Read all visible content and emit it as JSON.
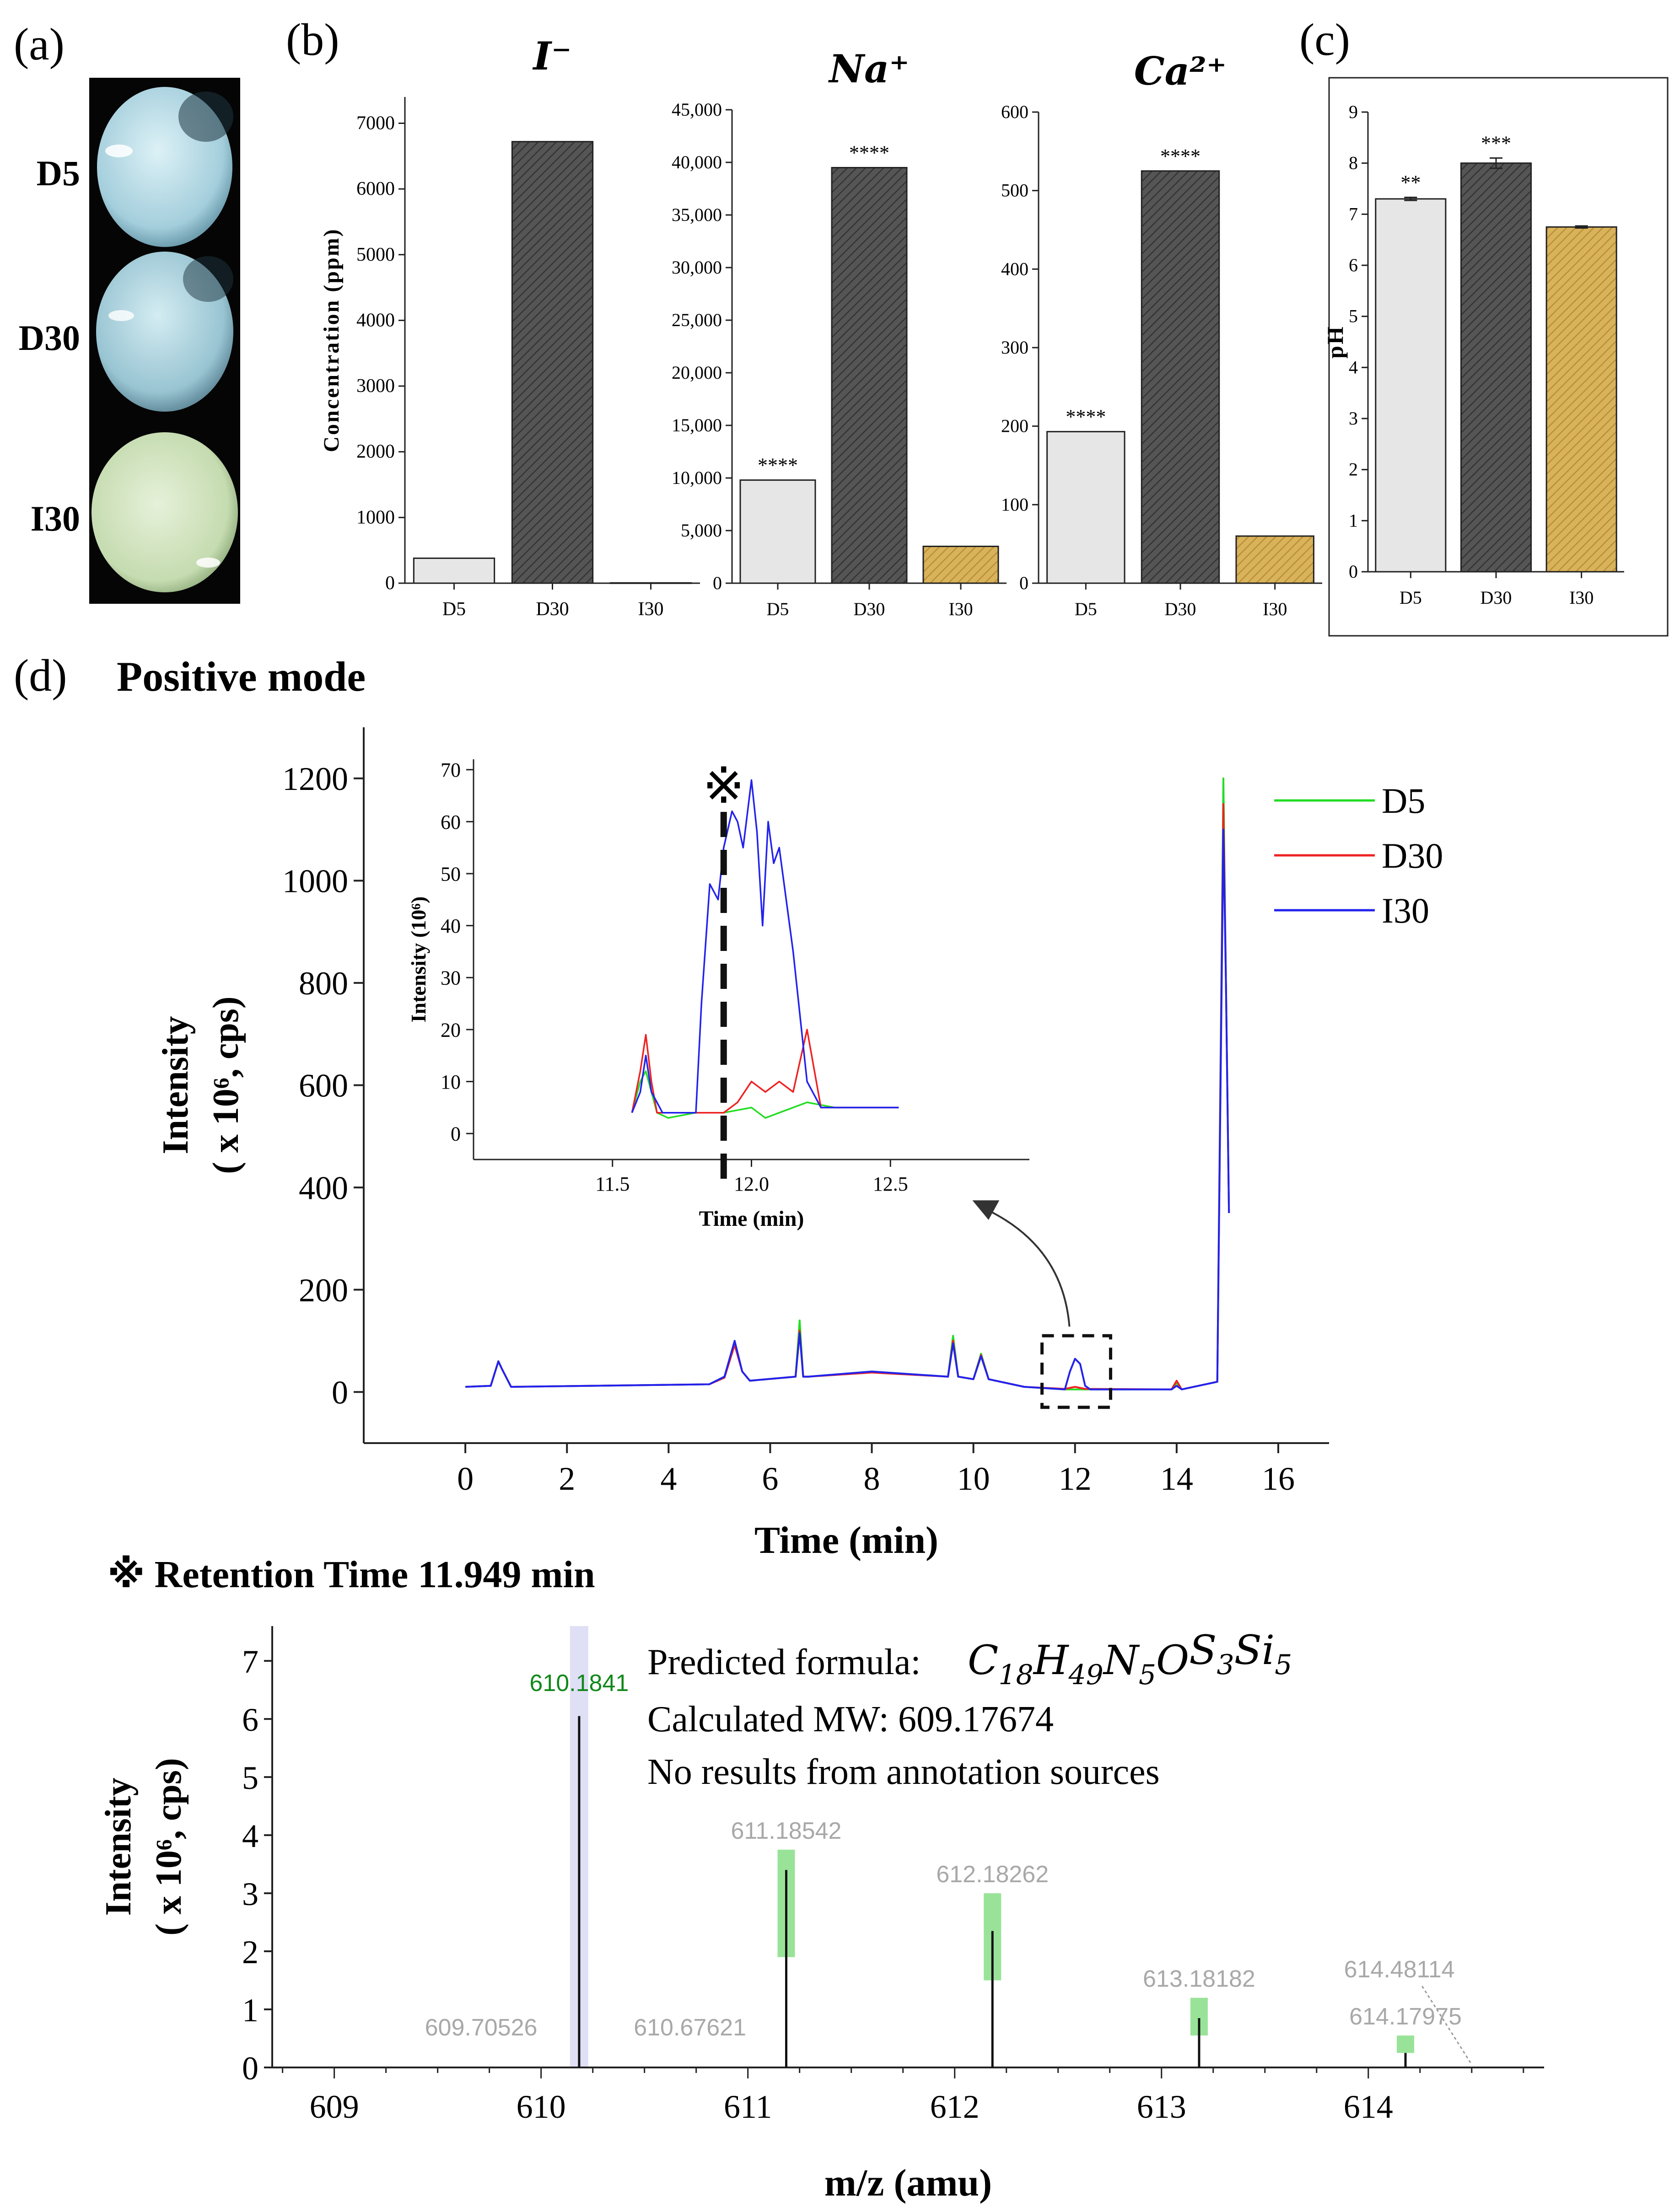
{
  "panel_labels": [
    "(a)",
    "(b)",
    "(c)",
    "(d)"
  ],
  "panel_a": {
    "samples": [
      {
        "label": "D5",
        "color": "#b8dce6"
      },
      {
        "label": "D30",
        "color": "#a9d0dc"
      },
      {
        "label": "I30",
        "color": "#cfe3c0"
      }
    ]
  },
  "chart_data": [
    {
      "id": "b1",
      "type": "bar",
      "title": "I⁻",
      "ylabel": "Concentration (ppm)",
      "categories": [
        "D5",
        "D30",
        "I30"
      ],
      "values": [
        380,
        6720,
        5
      ],
      "ylim": [
        0,
        7400
      ],
      "yticks": [
        0,
        1000,
        2000,
        3000,
        4000,
        5000,
        6000,
        7000
      ],
      "ytick_labels": [
        "0",
        "1000",
        "2000",
        "3000",
        "4000",
        "5000",
        "6000",
        "7000"
      ],
      "significance": [
        "",
        "",
        ""
      ],
      "bar_colors": [
        "#e6e6e6",
        "#555555",
        "#d9b25c"
      ]
    },
    {
      "id": "b2",
      "type": "bar",
      "title": "Na⁺",
      "categories": [
        "D5",
        "D30",
        "I30"
      ],
      "values": [
        9800,
        39500,
        3500
      ],
      "ylim": [
        0,
        45000
      ],
      "yticks": [
        0,
        5000,
        10000,
        15000,
        20000,
        25000,
        30000,
        35000,
        40000,
        45000
      ],
      "ytick_labels": [
        "0",
        "5,000",
        "10,000",
        "15,000",
        "20,000",
        "25,000",
        "30,000",
        "35,000",
        "40,000",
        "45,000"
      ],
      "significance": [
        "****",
        "****",
        ""
      ],
      "bar_colors": [
        "#e6e6e6",
        "#555555",
        "#d9b25c"
      ]
    },
    {
      "id": "b3",
      "type": "bar",
      "title": "Ca²⁺",
      "categories": [
        "D5",
        "D30",
        "I30"
      ],
      "values": [
        193,
        525,
        60
      ],
      "ylim": [
        0,
        600
      ],
      "yticks": [
        0,
        100,
        200,
        300,
        400,
        500,
        600
      ],
      "ytick_labels": [
        "0",
        "100",
        "200",
        "300",
        "400",
        "500",
        "600"
      ],
      "significance": [
        "****",
        "****",
        ""
      ],
      "bar_colors": [
        "#e6e6e6",
        "#555555",
        "#d9b25c"
      ]
    },
    {
      "id": "c",
      "type": "bar",
      "ylabel": "pH",
      "categories": [
        "D5",
        "D30",
        "I30"
      ],
      "values": [
        7.3,
        8.0,
        6.75
      ],
      "errors": [
        0.03,
        0.1,
        0.02
      ],
      "ylim": [
        0,
        9
      ],
      "yticks": [
        0,
        1,
        2,
        3,
        4,
        5,
        6,
        7,
        8,
        9
      ],
      "ytick_labels": [
        "0",
        "1",
        "2",
        "3",
        "4",
        "5",
        "6",
        "7",
        "8",
        "9"
      ],
      "significance": [
        "**",
        "***",
        ""
      ],
      "bar_colors": [
        "#e6e6e6",
        "#555555",
        "#d9b25c"
      ]
    },
    {
      "id": "d_main",
      "type": "line",
      "title": "Positive mode",
      "xlabel": "Time (min)",
      "ylabel_line1": "Intensity",
      "ylabel_line2": "( x 10⁶, cps)",
      "xlim": [
        -2,
        17
      ],
      "ylim": [
        -100,
        1300
      ],
      "xticks": [
        0,
        2,
        4,
        6,
        8,
        10,
        12,
        14,
        16
      ],
      "xtick_labels": [
        "0",
        "2",
        "4",
        "6",
        "8",
        "10",
        "12",
        "14",
        "16"
      ],
      "yticks": [
        0,
        200,
        400,
        600,
        800,
        1000,
        1200
      ],
      "ytick_labels": [
        "0",
        "200",
        "400",
        "600",
        "800",
        "1000",
        "1200"
      ],
      "legend_position": "top-right",
      "series": [
        {
          "name": "D5",
          "color": "#22dd22",
          "x": [
            0,
            0.5,
            0.65,
            0.72,
            0.9,
            4.8,
            5.1,
            5.3,
            5.45,
            5.6,
            6.5,
            6.58,
            6.65,
            6.75,
            8.0,
            9.5,
            9.6,
            9.7,
            10.0,
            10.15,
            10.3,
            11.0,
            11.8,
            12.0,
            12.2,
            13.9,
            14.0,
            14.1,
            14.8,
            14.92,
            14.97,
            15.03
          ],
          "y": [
            10,
            12,
            60,
            45,
            10,
            15,
            30,
            95,
            40,
            22,
            30,
            140,
            30,
            30,
            40,
            30,
            110,
            30,
            25,
            75,
            25,
            10,
            5,
            5,
            5,
            5,
            18,
            5,
            20,
            1200,
            800,
            350
          ]
        },
        {
          "name": "D30",
          "color": "#ee2222",
          "x": [
            0,
            0.5,
            0.65,
            0.72,
            0.9,
            4.8,
            5.1,
            5.3,
            5.45,
            5.6,
            6.5,
            6.58,
            6.65,
            6.75,
            8.0,
            9.5,
            9.6,
            9.7,
            10.0,
            10.15,
            10.3,
            11.0,
            11.8,
            12.0,
            12.2,
            13.9,
            14.0,
            14.1,
            14.8,
            14.92,
            14.97,
            15.03
          ],
          "y": [
            10,
            12,
            60,
            45,
            10,
            15,
            28,
            92,
            40,
            22,
            30,
            120,
            30,
            30,
            38,
            30,
            100,
            30,
            25,
            72,
            25,
            10,
            6,
            10,
            6,
            5,
            22,
            5,
            20,
            1150,
            800,
            350
          ]
        },
        {
          "name": "I30",
          "color": "#2222ee",
          "x": [
            0,
            0.5,
            0.65,
            0.72,
            0.9,
            4.8,
            5.1,
            5.3,
            5.45,
            5.6,
            6.5,
            6.58,
            6.65,
            6.75,
            8.0,
            9.5,
            9.6,
            9.7,
            10.0,
            10.15,
            10.3,
            11.0,
            11.8,
            11.9,
            12.0,
            12.1,
            12.2,
            12.3,
            13.9,
            14.0,
            14.1,
            14.8,
            14.92,
            14.97,
            15.03
          ],
          "y": [
            10,
            12,
            60,
            45,
            10,
            15,
            30,
            100,
            40,
            22,
            30,
            115,
            30,
            30,
            40,
            30,
            95,
            30,
            25,
            70,
            25,
            10,
            5,
            40,
            65,
            55,
            12,
            5,
            5,
            12,
            5,
            20,
            1100,
            800,
            350
          ]
        }
      ],
      "highlight_box": {
        "x": [
          11.35,
          12.7
        ],
        "y": [
          -30,
          110
        ]
      }
    },
    {
      "id": "d_inset",
      "type": "line",
      "xlabel": "Time (min)",
      "ylabel": "Intensity (10⁶)",
      "xlim": [
        11.0,
        13.0
      ],
      "ylim": [
        -5,
        72
      ],
      "xticks": [
        11.5,
        12.0,
        12.5
      ],
      "xtick_labels": [
        "11.5",
        "12.0",
        "12.5"
      ],
      "yticks": [
        0,
        10,
        20,
        30,
        40,
        50,
        60,
        70
      ],
      "ytick_labels": [
        "0",
        "10",
        "20",
        "30",
        "40",
        "50",
        "60",
        "70"
      ],
      "marker": {
        "symbol": "※",
        "x": 11.9
      },
      "series": [
        {
          "name": "D5",
          "color": "#22dd22",
          "x": [
            11.57,
            11.6,
            11.62,
            11.64,
            11.66,
            11.7,
            11.8,
            11.9,
            12.0,
            12.05,
            12.1,
            12.2,
            12.3,
            12.4,
            12.53
          ],
          "y": [
            4,
            10,
            12,
            8,
            4,
            3,
            4,
            4,
            5,
            3,
            4,
            6,
            5,
            5,
            5
          ]
        },
        {
          "name": "D30",
          "color": "#ee2222",
          "x": [
            11.57,
            11.6,
            11.62,
            11.64,
            11.66,
            11.7,
            11.8,
            11.9,
            11.95,
            12.0,
            12.05,
            12.1,
            12.15,
            12.2,
            12.25,
            12.3,
            12.4,
            12.53
          ],
          "y": [
            4,
            12,
            19,
            10,
            4,
            4,
            4,
            4,
            6,
            10,
            8,
            10,
            8,
            20,
            5,
            5,
            5,
            5
          ]
        },
        {
          "name": "I30",
          "color": "#2222ee",
          "x": [
            11.57,
            11.6,
            11.62,
            11.64,
            11.68,
            11.75,
            11.8,
            11.82,
            11.85,
            11.88,
            11.9,
            11.93,
            11.95,
            11.97,
            12.0,
            12.02,
            12.04,
            12.06,
            12.08,
            12.1,
            12.15,
            12.2,
            12.25,
            12.3,
            12.4,
            12.53
          ],
          "y": [
            4,
            8,
            15,
            8,
            4,
            4,
            4,
            25,
            48,
            45,
            55,
            62,
            60,
            55,
            68,
            58,
            40,
            60,
            52,
            55,
            35,
            10,
            5,
            5,
            5,
            5
          ]
        }
      ]
    },
    {
      "id": "d_ms",
      "type": "bar",
      "header": "※ Retention Time 11.949 min",
      "xlabel": "m/z (amu)",
      "ylabel_line1": "Intensity",
      "ylabel_line2": "( x 10⁶, cps)",
      "xlim": [
        608.7,
        614.85
      ],
      "ylim": [
        0,
        7.6
      ],
      "xticks": [
        609,
        610,
        611,
        612,
        613,
        614
      ],
      "xtick_labels": [
        "609",
        "610",
        "611",
        "612",
        "613",
        "614"
      ],
      "yticks": [
        0,
        1,
        2,
        3,
        4,
        5,
        6,
        7
      ],
      "ytick_labels": [
        "0",
        "1",
        "2",
        "3",
        "4",
        "5",
        "6",
        "7"
      ],
      "peaks": [
        {
          "mz": 610.1841,
          "intensity": 6.05,
          "label": "610.1841",
          "label_color": "#11881a",
          "highlight": "#dcdcf4",
          "hl_range": [
            0,
            7.6
          ]
        },
        {
          "mz": 611.18542,
          "intensity": 3.4,
          "label": "611.18542",
          "label_color": "#a8a8a8",
          "highlight": "#8ee08e",
          "hl_range": [
            1.9,
            3.75
          ]
        },
        {
          "mz": 612.18262,
          "intensity": 2.35,
          "label": "612.18262",
          "label_color": "#a8a8a8",
          "highlight": "#8ee08e",
          "hl_range": [
            1.5,
            3.0
          ]
        },
        {
          "mz": 613.18182,
          "intensity": 0.85,
          "label": "613.18182",
          "label_color": "#a8a8a8",
          "highlight": "#8ee08e",
          "hl_range": [
            0.55,
            1.2
          ]
        },
        {
          "mz": 614.17975,
          "intensity": 0.25,
          "label": "614.17975",
          "label_color": "#a8a8a8",
          "highlight": "#8ee08e",
          "hl_range": [
            0.25,
            0.55
          ]
        }
      ],
      "minor_labels": [
        {
          "mz": 609.70526,
          "label": "609.70526"
        },
        {
          "mz": 610.67621,
          "label": "610.67621"
        },
        {
          "mz": 614.48114,
          "label": "614.48114"
        }
      ],
      "annotation_lines": [
        "Predicted formula: ",
        "Calculated MW: 609.17674",
        "No results from annotation sources"
      ],
      "formula": {
        "parts": [
          {
            "el": "C",
            "sub": "18"
          },
          {
            "el": "H",
            "sub": "49"
          },
          {
            "el": "N",
            "sub": "5"
          },
          {
            "el": "O",
            "sub": ""
          },
          {
            "el": "S",
            "sub": "3"
          },
          {
            "el": "Si",
            "sub": "5"
          }
        ]
      }
    }
  ]
}
